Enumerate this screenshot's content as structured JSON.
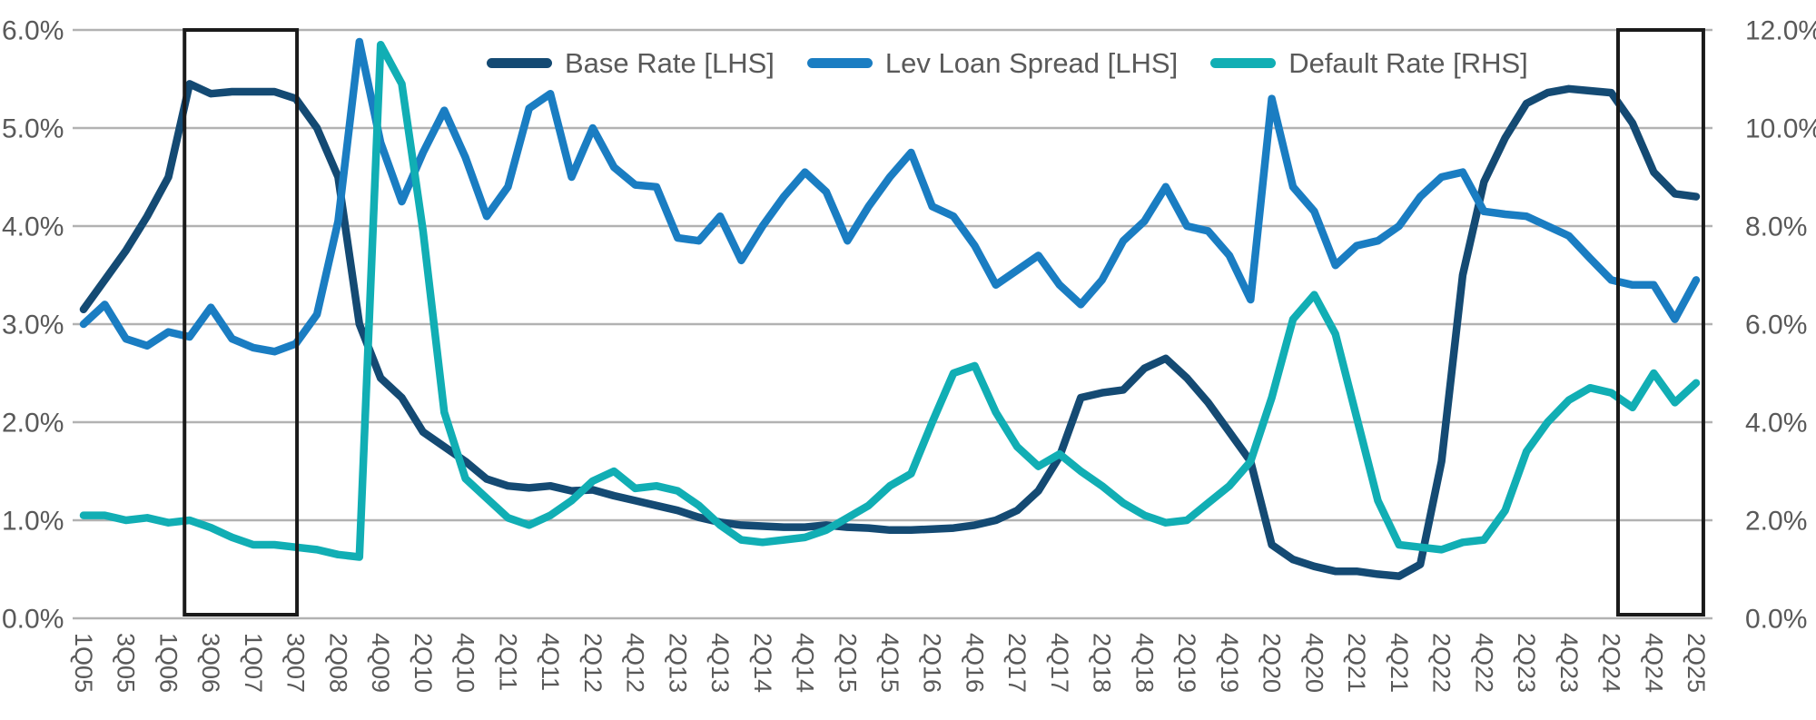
{
  "page": {
    "background": "#ffffff",
    "text_color": "#595959",
    "grid_color": "#b2b2b2",
    "highlight_box_color": "#1a1a1a"
  },
  "chart_data": {
    "type": "line",
    "title": "",
    "x_tick_labels": [
      "1Q05",
      "3Q05",
      "1Q06",
      "3Q06",
      "1Q07",
      "3Q07",
      "2Q08",
      "4Q09",
      "2Q10",
      "4Q10",
      "2Q11",
      "4Q11",
      "2Q12",
      "4Q12",
      "2Q13",
      "4Q13",
      "2Q14",
      "4Q14",
      "2Q15",
      "4Q15",
      "2Q16",
      "4Q16",
      "2Q17",
      "4Q17",
      "2Q18",
      "4Q18",
      "2Q19",
      "4Q19",
      "2Q20",
      "4Q20",
      "2Q21",
      "4Q21",
      "2Q22",
      "4Q22",
      "2Q23",
      "4Q23",
      "2Q24",
      "4Q24",
      "2Q25"
    ],
    "samples_per_tick_gap": 2,
    "left_axis": {
      "min": 0,
      "max": 6,
      "tick_labels": [
        "0.0%",
        "1.0%",
        "2.0%",
        "3.0%",
        "4.0%",
        "5.0%",
        "6.0%"
      ]
    },
    "right_axis": {
      "min": 0,
      "max": 12,
      "tick_labels": [
        "0.0%",
        "2.0%",
        "4.0%",
        "6.0%",
        "8.0%",
        "10.0%",
        "12.0%"
      ]
    },
    "grid": true,
    "legend_position": "top-center",
    "series": [
      {
        "id": "base-rate",
        "name": "Base Rate [LHS]",
        "axis": "left",
        "color": "#144a73",
        "values": [
          3.15,
          3.45,
          3.75,
          4.1,
          4.5,
          5.45,
          5.35,
          5.37,
          5.37,
          5.37,
          5.3,
          5.0,
          4.5,
          3.0,
          2.45,
          2.25,
          1.9,
          1.75,
          1.6,
          1.42,
          1.35,
          1.33,
          1.35,
          1.3,
          1.31,
          1.25,
          1.2,
          1.15,
          1.1,
          1.03,
          0.98,
          0.95,
          0.94,
          0.93,
          0.93,
          0.95,
          0.93,
          0.92,
          0.9,
          0.9,
          0.91,
          0.92,
          0.95,
          1.0,
          1.1,
          1.3,
          1.65,
          2.25,
          2.3,
          2.33,
          2.55,
          2.65,
          2.45,
          2.2,
          1.9,
          1.6,
          0.75,
          0.6,
          0.53,
          0.48,
          0.48,
          0.45,
          0.43,
          0.55,
          1.6,
          3.5,
          4.45,
          4.9,
          5.25,
          5.36,
          5.4,
          5.38,
          5.36,
          5.05,
          4.55,
          4.33,
          4.3
        ]
      },
      {
        "id": "lev-loan-spread",
        "name": "Lev Loan Spread [LHS]",
        "axis": "left",
        "color": "#1a7dc2",
        "values": [
          3.0,
          3.2,
          2.85,
          2.78,
          2.92,
          2.87,
          3.17,
          2.85,
          2.76,
          2.72,
          2.8,
          3.1,
          4.05,
          5.88,
          4.85,
          4.25,
          4.75,
          5.18,
          4.7,
          4.1,
          4.4,
          5.2,
          5.35,
          4.5,
          5.0,
          4.6,
          4.42,
          4.4,
          3.88,
          3.85,
          4.1,
          3.65,
          4.0,
          4.3,
          4.55,
          4.35,
          3.85,
          4.2,
          4.5,
          4.75,
          4.2,
          4.1,
          3.8,
          3.4,
          3.55,
          3.7,
          3.4,
          3.2,
          3.45,
          3.85,
          4.05,
          4.4,
          4.0,
          3.95,
          3.7,
          3.25,
          5.3,
          4.4,
          4.15,
          3.6,
          3.8,
          3.85,
          4.0,
          4.3,
          4.5,
          4.55,
          4.15,
          4.12,
          4.1,
          4.0,
          3.9,
          3.67,
          3.45,
          3.4,
          3.4,
          3.05,
          3.45
        ]
      },
      {
        "id": "default-rate",
        "name": "Default Rate [RHS]",
        "axis": "right",
        "color": "#11aeb4",
        "values": [
          2.1,
          2.1,
          2.0,
          2.05,
          1.95,
          2.0,
          1.85,
          1.65,
          1.5,
          1.5,
          1.45,
          1.4,
          1.3,
          1.25,
          11.7,
          10.9,
          7.9,
          4.2,
          2.85,
          2.45,
          2.05,
          1.9,
          2.1,
          2.4,
          2.8,
          3.0,
          2.65,
          2.7,
          2.6,
          2.3,
          1.9,
          1.6,
          1.55,
          1.6,
          1.65,
          1.8,
          2.05,
          2.3,
          2.7,
          2.95,
          4.0,
          5.0,
          5.15,
          4.2,
          3.5,
          3.1,
          3.35,
          3.0,
          2.7,
          2.35,
          2.1,
          1.95,
          2.0,
          2.35,
          2.7,
          3.2,
          4.5,
          6.1,
          6.6,
          5.8,
          4.1,
          2.4,
          1.5,
          1.45,
          1.4,
          1.55,
          1.6,
          2.2,
          3.4,
          4.0,
          4.45,
          4.7,
          4.6,
          4.3,
          5.0,
          4.4,
          4.8
        ]
      }
    ],
    "highlight_boxes": [
      {
        "from_tick": 2.38,
        "to_tick": 5.03
      },
      {
        "from_tick": 36.16,
        "to_tick": 38.17
      }
    ]
  }
}
